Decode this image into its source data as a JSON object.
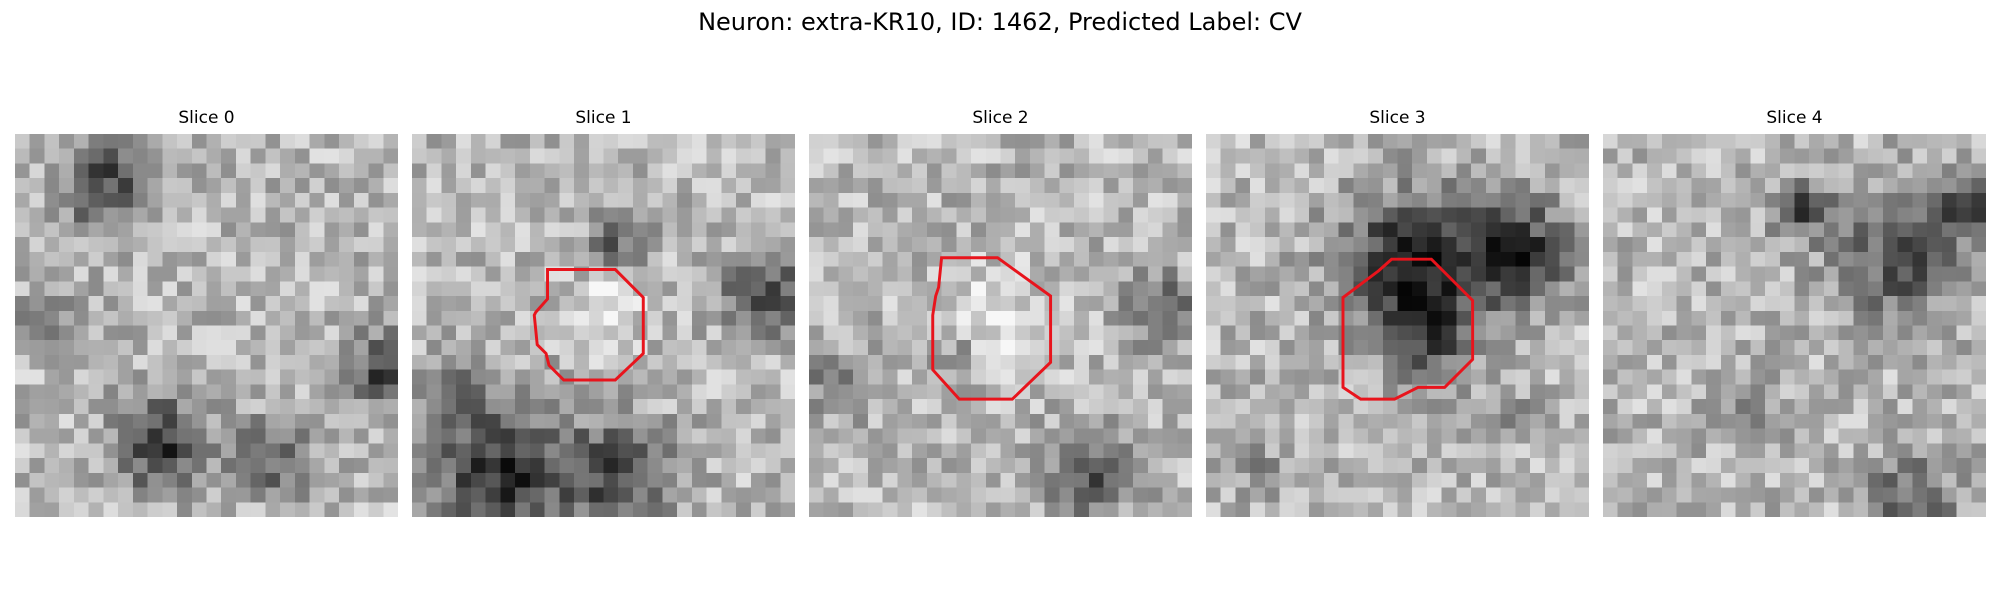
{
  "figure": {
    "title": "Neuron: extra-KR10, ID: 1462, Predicted Label: CV"
  },
  "colors": {
    "contour": "#e8141c",
    "background": "#ffffff",
    "colormap": "grayscale"
  },
  "grid_size": 26,
  "panels": [
    {
      "title": "Slice 0",
      "has_contour": false
    },
    {
      "title": "Slice 1",
      "has_contour": true
    },
    {
      "title": "Slice 2",
      "has_contour": true
    },
    {
      "title": "Slice 3",
      "has_contour": true
    },
    {
      "title": "Slice 4",
      "has_contour": false
    }
  ]
}
